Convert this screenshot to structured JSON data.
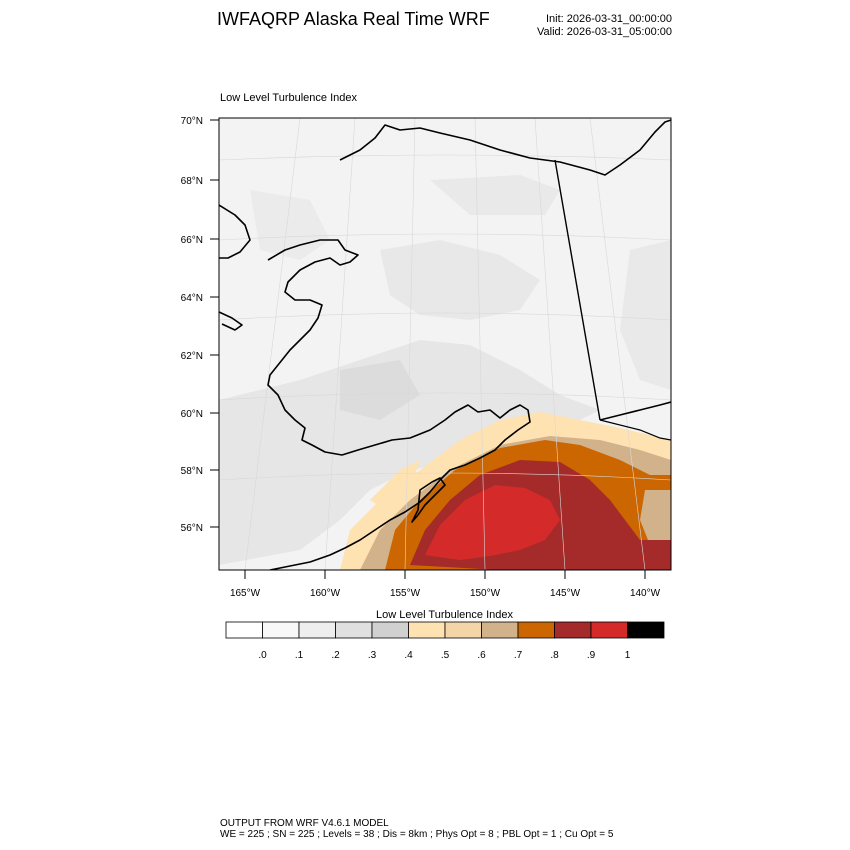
{
  "header": {
    "title": "IWFAQRP Alaska Real Time WRF",
    "init": "Init: 2026-03-31_00:00:00",
    "valid": "Valid: 2026-03-31_05:00:00"
  },
  "plot": {
    "title": "Low Level Turbulence Index",
    "lat_labels": [
      "70°N",
      "68°N",
      "66°N",
      "64°N",
      "62°N",
      "60°N",
      "58°N",
      "56°N"
    ],
    "lon_labels": [
      "165°W",
      "160°W",
      "155°W",
      "150°W",
      "145°W",
      "140°W"
    ]
  },
  "colorbar": {
    "title": "Low Level Turbulence Index",
    "labels": [
      ".0",
      ".1",
      ".2",
      ".3",
      ".4",
      ".5",
      ".6",
      ".7",
      ".8",
      ".9",
      "1"
    ],
    "colors": [
      "#ffffff",
      "#f8f8f8",
      "#eeeeee",
      "#e0e0e0",
      "#d0d0d0",
      "#ffe2b2",
      "#f3d5a8",
      "#d2b28b",
      "#cc6600",
      "#a52a2a",
      "#d42a2a",
      "#000000"
    ]
  },
  "map_colors": {
    "land_base": "#f3f3f3",
    "light_gray": "#e6e6e6",
    "mid_gray": "#dcdcdc",
    "peach": "#ffe2b2",
    "tan": "#d2b28b",
    "orange": "#cc6600",
    "brown_red": "#a52a2a",
    "red": "#d42a2a"
  },
  "footer": {
    "line1": "OUTPUT FROM WRF V4.6.1 MODEL",
    "line2": "WE = 225 ; SN = 225 ; Levels = 38 ; Dis = 8km ; Phys Opt = 8 ; PBL Opt = 1 ; Cu Opt = 5"
  }
}
